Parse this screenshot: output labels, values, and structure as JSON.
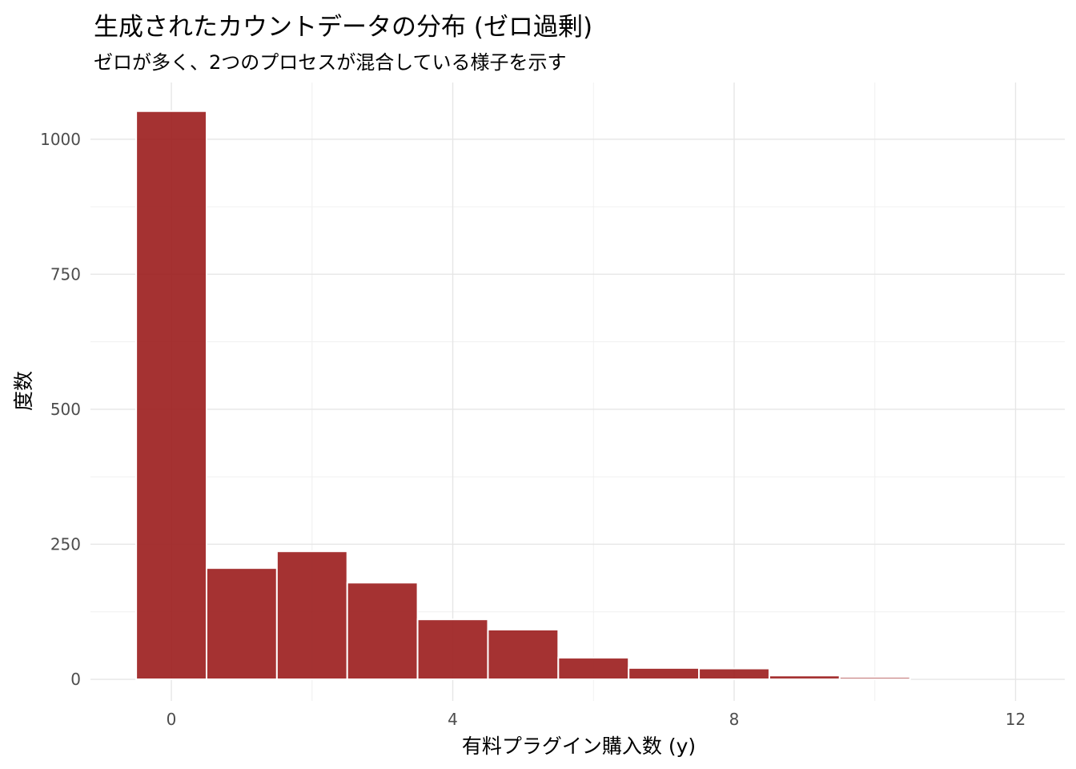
{
  "chart_data": {
    "type": "bar",
    "title": "生成されたカウントデータの分布 (ゼロ過剰)",
    "subtitle": "ゼロが多く、2つのプロセスが混合している様子を示す",
    "xlabel": "有料プラグイン購入数 (y)",
    "ylabel": "度数",
    "x": [
      0,
      1,
      2,
      3,
      4,
      5,
      6,
      7,
      8,
      9,
      10,
      11,
      12
    ],
    "values": [
      1052,
      206,
      237,
      179,
      111,
      92,
      40,
      21,
      20,
      7,
      4,
      0,
      0
    ],
    "xlim": [
      -1.15,
      12.7
    ],
    "ylim": [
      -40,
      1105
    ],
    "x_ticks": [
      "0",
      "4",
      "8",
      "12"
    ],
    "y_ticks": [
      "0",
      "250",
      "500",
      "750",
      "1000"
    ],
    "bar_color": "#9b1c1c",
    "bar_edge_color": "#ffffff",
    "grid": true,
    "legend": "none"
  }
}
